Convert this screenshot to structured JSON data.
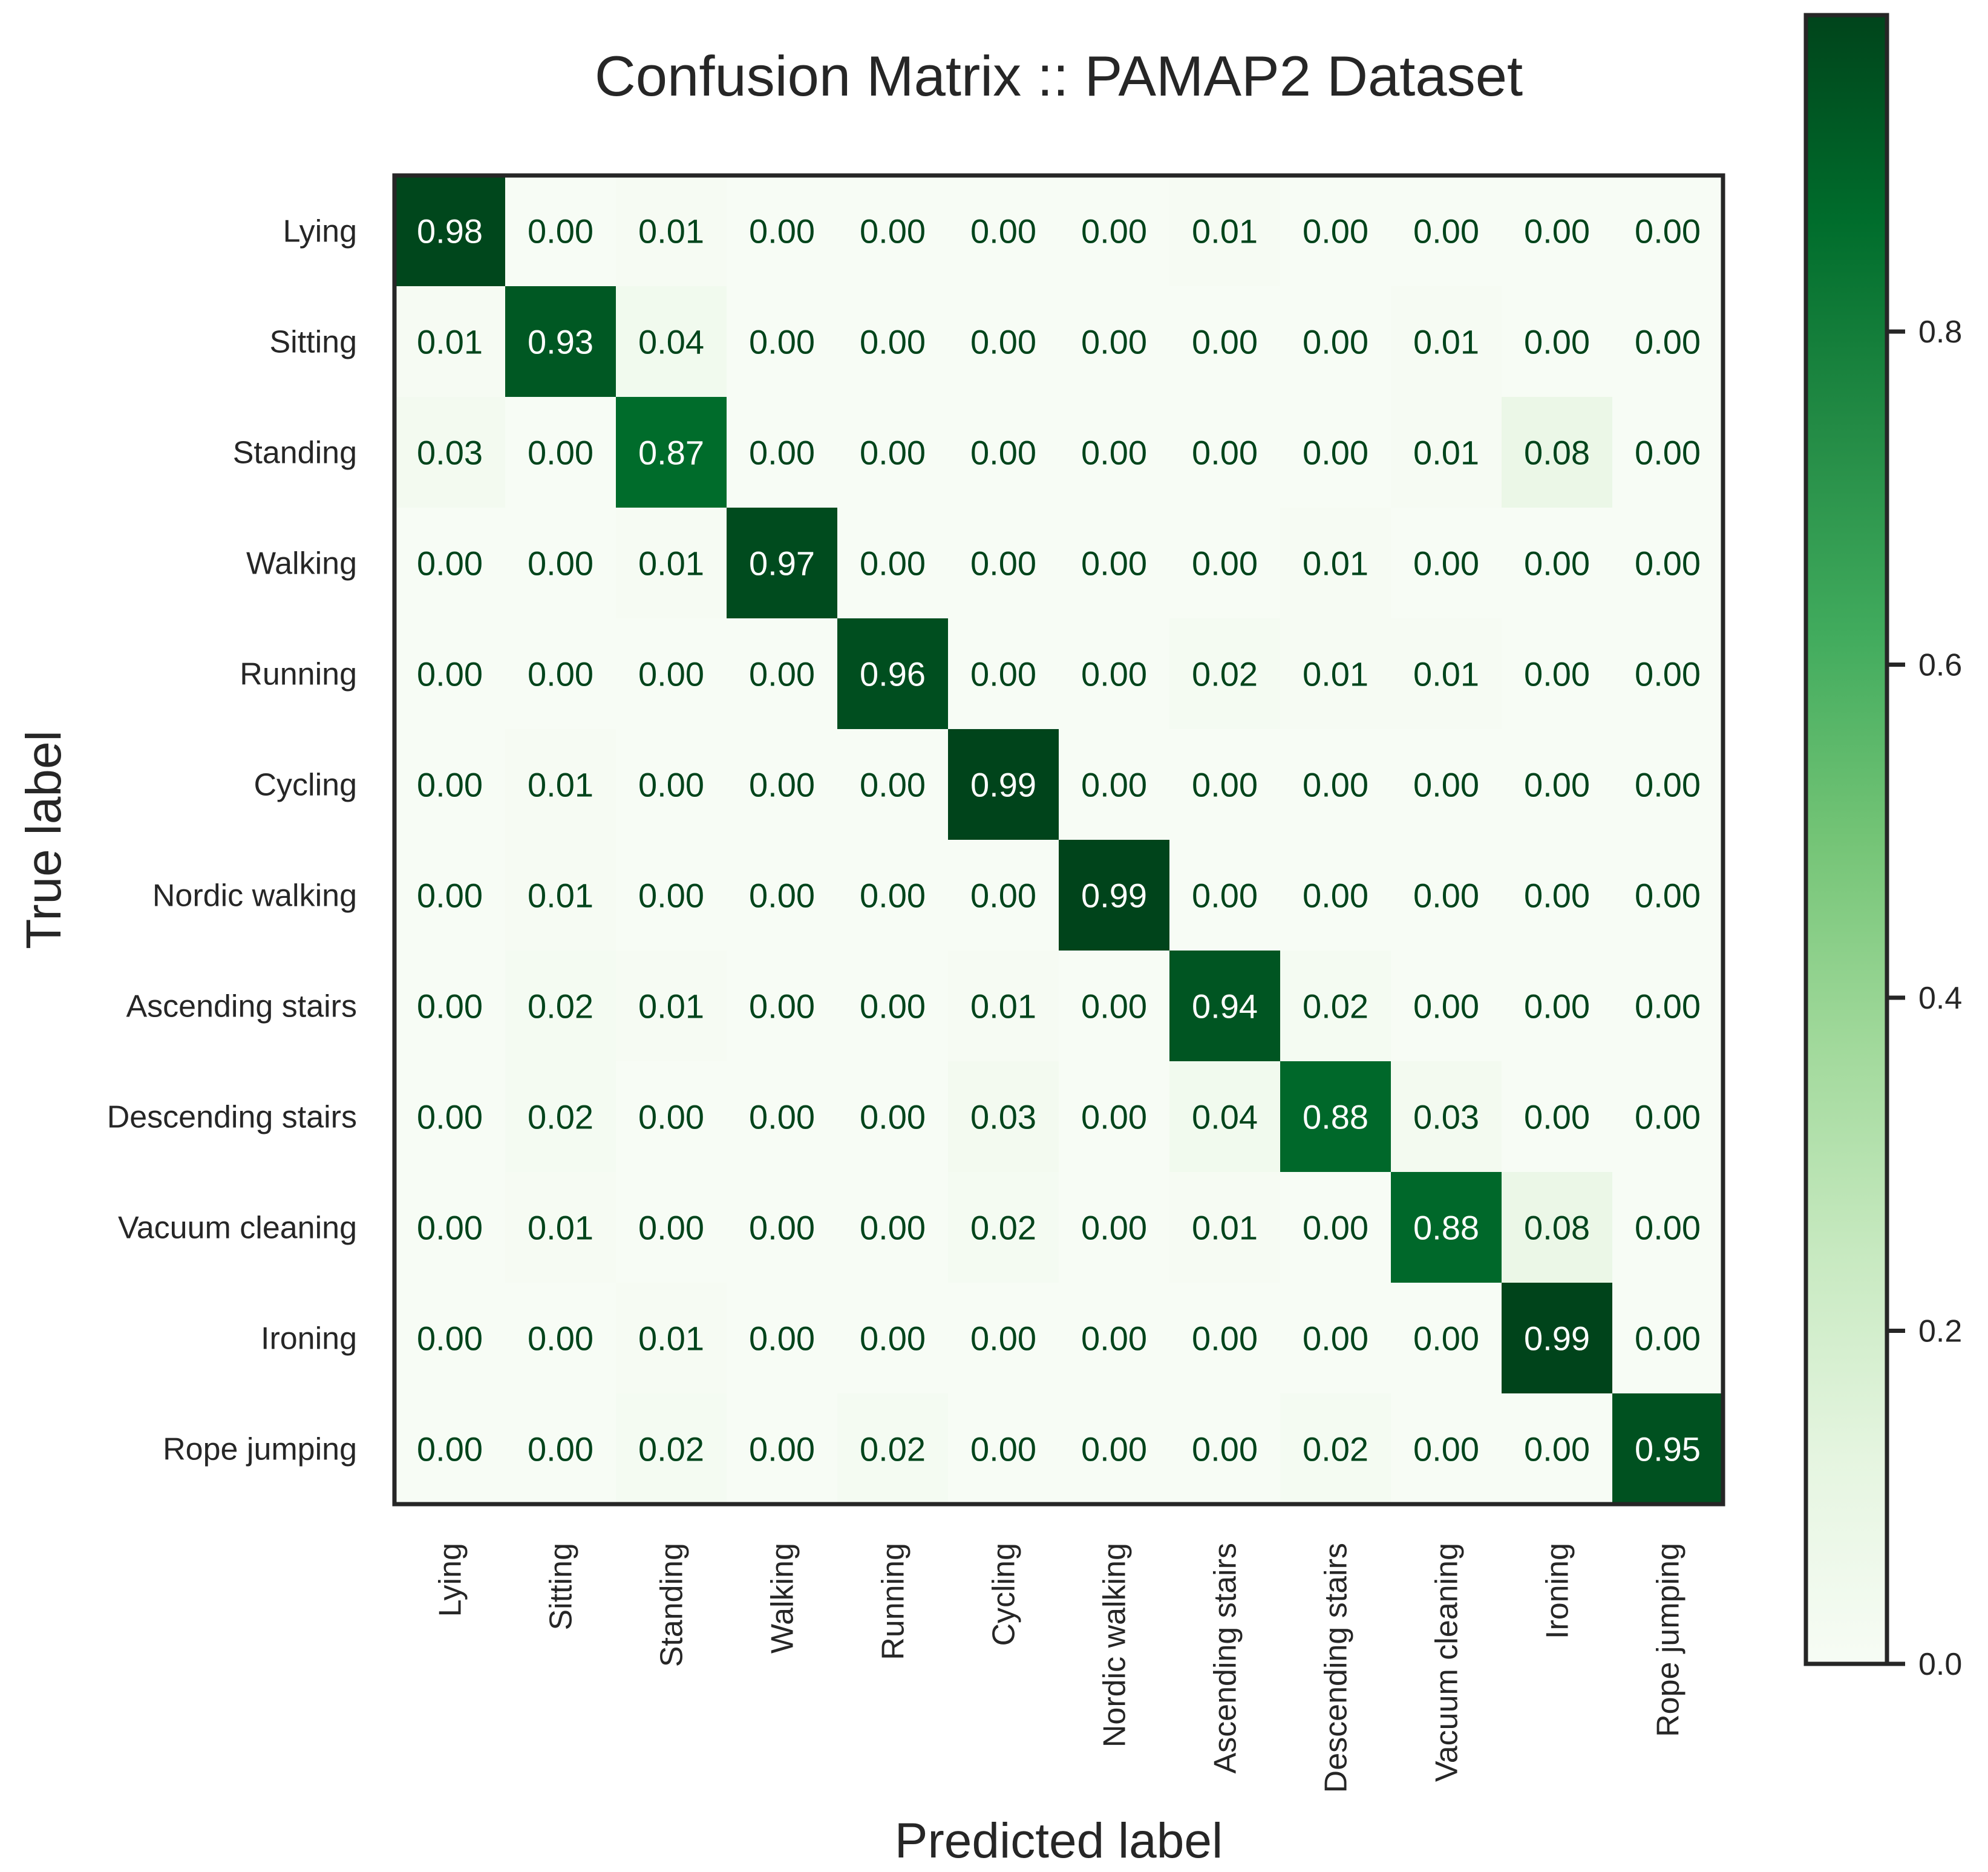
{
  "chart_data": {
    "type": "heatmap",
    "title": "Confusion Matrix :: PAMAP2 Dataset",
    "xlabel": "Predicted label",
    "ylabel": "True label",
    "classes": [
      "Lying",
      "Sitting",
      "Standing",
      "Walking",
      "Running",
      "Cycling",
      "Nordic walking",
      "Ascending stairs",
      "Descending stairs",
      "Vacuum cleaning",
      "Ironing",
      "Rope jumping"
    ],
    "matrix": [
      [
        0.98,
        0.0,
        0.01,
        0.0,
        0.0,
        0.0,
        0.0,
        0.01,
        0.0,
        0.0,
        0.0,
        0.0
      ],
      [
        0.01,
        0.93,
        0.04,
        0.0,
        0.0,
        0.0,
        0.0,
        0.0,
        0.0,
        0.01,
        0.0,
        0.0
      ],
      [
        0.03,
        0.0,
        0.87,
        0.0,
        0.0,
        0.0,
        0.0,
        0.0,
        0.0,
        0.01,
        0.08,
        0.0
      ],
      [
        0.0,
        0.0,
        0.01,
        0.97,
        0.0,
        0.0,
        0.0,
        0.0,
        0.01,
        0.0,
        0.0,
        0.0
      ],
      [
        0.0,
        0.0,
        0.0,
        0.0,
        0.96,
        0.0,
        0.0,
        0.02,
        0.01,
        0.01,
        0.0,
        0.0
      ],
      [
        0.0,
        0.01,
        0.0,
        0.0,
        0.0,
        0.99,
        0.0,
        0.0,
        0.0,
        0.0,
        0.0,
        0.0
      ],
      [
        0.0,
        0.01,
        0.0,
        0.0,
        0.0,
        0.0,
        0.99,
        0.0,
        0.0,
        0.0,
        0.0,
        0.0
      ],
      [
        0.0,
        0.02,
        0.01,
        0.0,
        0.0,
        0.01,
        0.0,
        0.94,
        0.02,
        0.0,
        0.0,
        0.0
      ],
      [
        0.0,
        0.02,
        0.0,
        0.0,
        0.0,
        0.03,
        0.0,
        0.04,
        0.88,
        0.03,
        0.0,
        0.0
      ],
      [
        0.0,
        0.01,
        0.0,
        0.0,
        0.0,
        0.02,
        0.0,
        0.01,
        0.0,
        0.88,
        0.08,
        0.0
      ],
      [
        0.0,
        0.0,
        0.01,
        0.0,
        0.0,
        0.0,
        0.0,
        0.0,
        0.0,
        0.0,
        0.99,
        0.0
      ],
      [
        0.0,
        0.0,
        0.02,
        0.0,
        0.02,
        0.0,
        0.0,
        0.0,
        0.02,
        0.0,
        0.0,
        0.95
      ]
    ],
    "value_format": "0.00",
    "colormap": "Greens",
    "colorbar": {
      "range": [
        0.0,
        0.99
      ],
      "ticks": [
        0.0,
        0.2,
        0.4,
        0.6,
        0.8
      ],
      "tick_labels": [
        "0.0",
        "0.2",
        "0.4",
        "0.6",
        "0.8"
      ]
    },
    "grid": false
  },
  "colors": {
    "frame": "#262626",
    "text_dark": "#262626",
    "cell_text_light": "#ffffff",
    "cell_text_dark": "#00441b",
    "greens": [
      "#f7fcf5",
      "#e5f5e0",
      "#c7e9c0",
      "#a1d99b",
      "#74c476",
      "#41ab5d",
      "#238b45",
      "#006d2c",
      "#00441b"
    ]
  }
}
